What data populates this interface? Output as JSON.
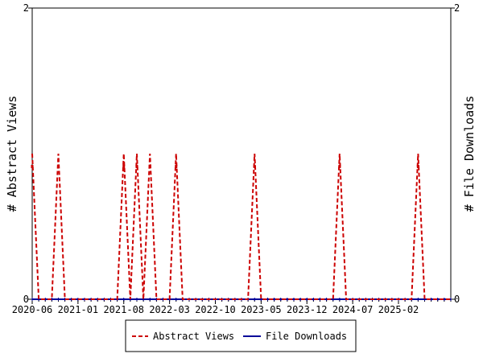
{
  "chart_data": {
    "type": "line",
    "title": "",
    "ylabel_left": "# Abstract Views",
    "ylabel_right": "# File Downloads",
    "ylim_left": [
      0,
      2
    ],
    "ylim_right": [
      0,
      2
    ],
    "left_ticks": [
      "0",
      "2"
    ],
    "right_ticks": [
      "0",
      "2"
    ],
    "x_start": "2020-06",
    "x_end": "2025-10",
    "x_ticks": [
      "2020-06",
      "2021-01",
      "2021-08",
      "2022-03",
      "2022-10",
      "2023-05",
      "2023-12",
      "2024-07",
      "2025-02"
    ],
    "legend_position": "bottom",
    "grid": false,
    "series": [
      {
        "name": "Abstract Views",
        "color": "#cc0000",
        "style": "dashed",
        "axis": "left",
        "points": [
          [
            "2020-06",
            1
          ],
          [
            "2020-07",
            0
          ],
          [
            "2020-08",
            0
          ],
          [
            "2020-09",
            0
          ],
          [
            "2020-10",
            1
          ],
          [
            "2020-11",
            0
          ],
          [
            "2020-12",
            0
          ],
          [
            "2021-01",
            0
          ],
          [
            "2021-02",
            0
          ],
          [
            "2021-03",
            0
          ],
          [
            "2021-04",
            0
          ],
          [
            "2021-05",
            0
          ],
          [
            "2021-06",
            0
          ],
          [
            "2021-07",
            0
          ],
          [
            "2021-08",
            1
          ],
          [
            "2021-09",
            0
          ],
          [
            "2021-10",
            1
          ],
          [
            "2021-11",
            0
          ],
          [
            "2021-12",
            1
          ],
          [
            "2022-01",
            0
          ],
          [
            "2022-02",
            0
          ],
          [
            "2022-03",
            0
          ],
          [
            "2022-04",
            1
          ],
          [
            "2022-05",
            0
          ],
          [
            "2022-06",
            0
          ],
          [
            "2022-07",
            0
          ],
          [
            "2022-08",
            0
          ],
          [
            "2022-09",
            0
          ],
          [
            "2022-10",
            0
          ],
          [
            "2022-11",
            0
          ],
          [
            "2022-12",
            0
          ],
          [
            "2023-01",
            0
          ],
          [
            "2023-02",
            0
          ],
          [
            "2023-03",
            0
          ],
          [
            "2023-04",
            1
          ],
          [
            "2023-05",
            0
          ],
          [
            "2023-06",
            0
          ],
          [
            "2023-07",
            0
          ],
          [
            "2023-08",
            0
          ],
          [
            "2023-09",
            0
          ],
          [
            "2023-10",
            0
          ],
          [
            "2023-11",
            0
          ],
          [
            "2023-12",
            0
          ],
          [
            "2024-01",
            0
          ],
          [
            "2024-02",
            0
          ],
          [
            "2024-03",
            0
          ],
          [
            "2024-04",
            0
          ],
          [
            "2024-05",
            1
          ],
          [
            "2024-06",
            0
          ],
          [
            "2024-07",
            0
          ],
          [
            "2024-08",
            0
          ],
          [
            "2024-09",
            0
          ],
          [
            "2024-10",
            0
          ],
          [
            "2024-11",
            0
          ],
          [
            "2024-12",
            0
          ],
          [
            "2025-01",
            0
          ],
          [
            "2025-02",
            0
          ],
          [
            "2025-03",
            0
          ],
          [
            "2025-04",
            0
          ],
          [
            "2025-05",
            1
          ],
          [
            "2025-06",
            0
          ],
          [
            "2025-07",
            0
          ],
          [
            "2025-08",
            0
          ],
          [
            "2025-09",
            0
          ],
          [
            "2025-10",
            0
          ]
        ]
      },
      {
        "name": "File Downloads",
        "color": "#000099",
        "style": "solid",
        "axis": "right",
        "points": [
          [
            "2020-06",
            0
          ],
          [
            "2025-10",
            0
          ]
        ]
      }
    ]
  }
}
